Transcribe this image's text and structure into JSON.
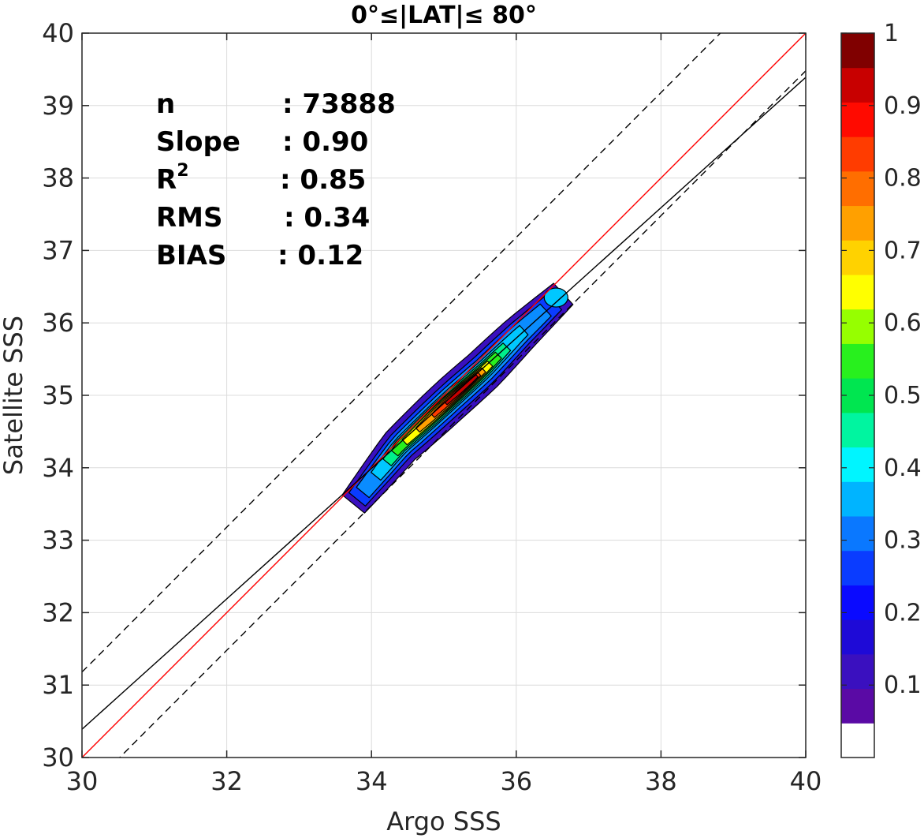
{
  "chart_data": {
    "type": "contour",
    "title": "0°≤|LAT|≤ 80°",
    "xlabel": "Argo SSS",
    "ylabel": "Satellite SSS",
    "xlim": [
      30,
      40
    ],
    "ylim": [
      30,
      40
    ],
    "x_ticks": [
      30,
      32,
      34,
      36,
      38,
      40
    ],
    "y_ticks": [
      30,
      31,
      32,
      33,
      34,
      35,
      36,
      37,
      38,
      39,
      40
    ],
    "grid": true,
    "stats": [
      {
        "label": "n",
        "value": ": 73888"
      },
      {
        "label": "Slope",
        "value": ": 0.90"
      },
      {
        "label": "R",
        "sup": "2",
        "value": ": 0.85"
      },
      {
        "label": "RMS",
        "value": ": 0.34"
      },
      {
        "label": "BIAS",
        "value": ": 0.12"
      }
    ],
    "lines": [
      {
        "kind": "one-to-one",
        "color": "#ff0000",
        "style": "solid",
        "slope": 1.0,
        "intercept": 0.0
      },
      {
        "kind": "regression",
        "color": "#000000",
        "style": "solid",
        "slope": 0.9,
        "intercept": 3.39
      },
      {
        "kind": "upper-bound",
        "color": "#000000",
        "style": "dashed",
        "slope": 1.0,
        "intercept": 1.18
      },
      {
        "kind": "lower-bound",
        "color": "#000000",
        "style": "dashed",
        "slope": 1.0,
        "intercept": -0.52
      }
    ],
    "contours": {
      "description": "normalized point density, filled contours",
      "spine": [
        [
          33.75,
          33.5
        ],
        [
          34.4,
          34.3
        ],
        [
          35.1,
          34.95
        ],
        [
          35.55,
          35.35
        ],
        [
          36.05,
          35.85
        ],
        [
          36.65,
          36.4
        ]
      ],
      "levels": [
        {
          "level": 0.05,
          "spine_t": [
            0.0,
            1.0
          ],
          "half_width": 0.3,
          "color": "#3a10bf"
        },
        {
          "level": 0.15,
          "spine_t": [
            0.02,
            0.96
          ],
          "half_width": 0.22,
          "color": "#0a3cff"
        },
        {
          "level": 0.25,
          "spine_t": [
            0.05,
            0.92
          ],
          "half_width": 0.17,
          "color": "#0a8cff"
        },
        {
          "level": 0.35,
          "spine_t": [
            0.12,
            0.82
          ],
          "half_width": 0.13,
          "color": "#00c8ff"
        },
        {
          "level": 0.45,
          "spine_t": [
            0.18,
            0.74
          ],
          "half_width": 0.11,
          "color": "#00f08c"
        },
        {
          "level": 0.55,
          "spine_t": [
            0.22,
            0.7
          ],
          "half_width": 0.09,
          "color": "#28f01e"
        },
        {
          "level": 0.65,
          "spine_t": [
            0.27,
            0.66
          ],
          "half_width": 0.075,
          "color": "#ffff00"
        },
        {
          "level": 0.75,
          "spine_t": [
            0.33,
            0.63
          ],
          "half_width": 0.06,
          "color": "#ffa000"
        },
        {
          "level": 0.85,
          "spine_t": [
            0.4,
            0.61
          ],
          "half_width": 0.045,
          "color": "#ff3c00"
        },
        {
          "level": 0.95,
          "spine_t": [
            0.46,
            0.6
          ],
          "half_width": 0.03,
          "color": "#c80000"
        }
      ],
      "peak": [
        36.55,
        36.35
      ]
    },
    "colorbar": {
      "ticks": [
        0.1,
        0.2,
        0.3,
        0.4,
        0.5,
        0.6,
        0.7,
        0.8,
        0.9,
        1
      ],
      "tick_labels": [
        "0.1",
        "0.2",
        "0.3",
        "0.4",
        "0.5",
        "0.6",
        "0.7",
        "0.8",
        "0.9",
        "1"
      ],
      "range": [
        0,
        1
      ],
      "bands": [
        "#ffffff",
        "#5a0aa5",
        "#3a10bf",
        "#1e0ad7",
        "#0a0aff",
        "#0a3cff",
        "#0a78ff",
        "#00b4ff",
        "#00f5ff",
        "#00f5a0",
        "#00e650",
        "#28f01e",
        "#96ff00",
        "#ffff00",
        "#ffd200",
        "#ffa000",
        "#ff6e00",
        "#ff3c00",
        "#ff0a00",
        "#c80000",
        "#800000"
      ]
    }
  }
}
